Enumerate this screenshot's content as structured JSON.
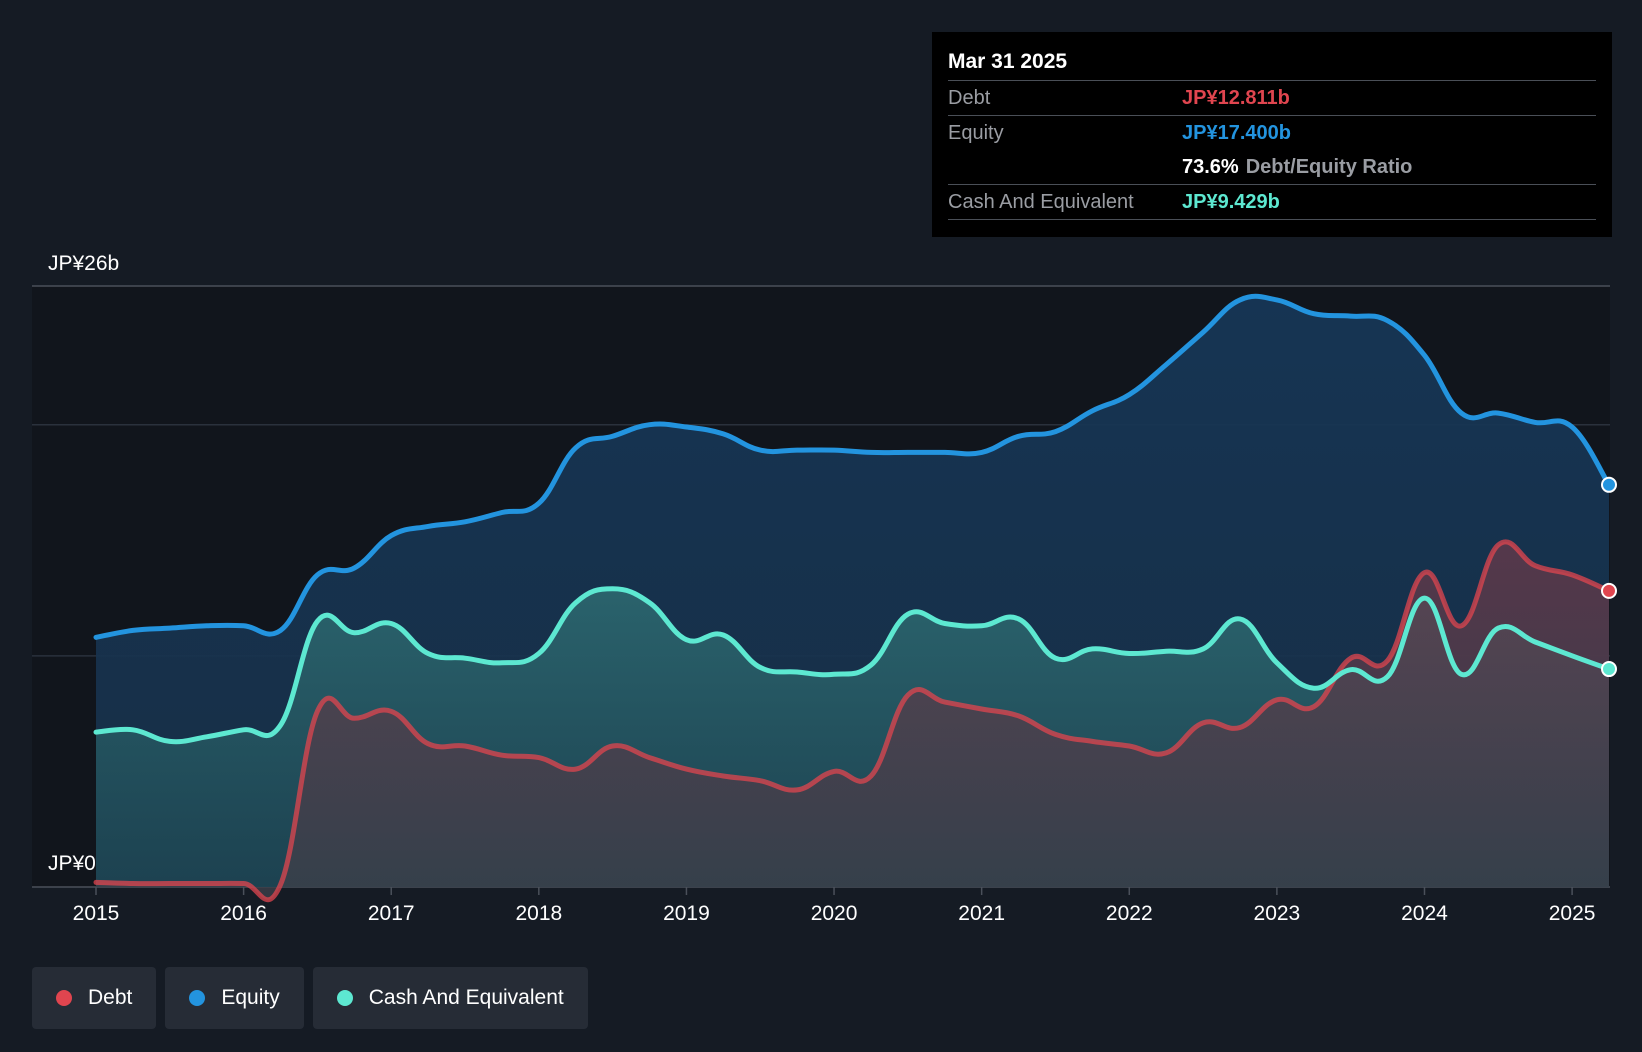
{
  "chart_data": {
    "type": "area",
    "y_axis_top_label": "JP¥26b",
    "y_axis_bottom_label": "JP¥0",
    "ylim": [
      0,
      26
    ],
    "x_ticks": [
      "2015",
      "2016",
      "2017",
      "2018",
      "2019",
      "2020",
      "2021",
      "2022",
      "2023",
      "2024",
      "2025"
    ],
    "xlim": [
      2015.0,
      2025.25
    ],
    "series": [
      {
        "name": "Equity",
        "color": "#2394df",
        "points": [
          [
            2015.0,
            10.8
          ],
          [
            2015.25,
            11.1
          ],
          [
            2015.5,
            11.2
          ],
          [
            2015.75,
            11.3
          ],
          [
            2016.0,
            11.3
          ],
          [
            2016.25,
            11.1
          ],
          [
            2016.5,
            13.5
          ],
          [
            2016.75,
            13.8
          ],
          [
            2017.0,
            15.2
          ],
          [
            2017.25,
            15.6
          ],
          [
            2017.5,
            15.8
          ],
          [
            2017.75,
            16.2
          ],
          [
            2018.0,
            16.6
          ],
          [
            2018.25,
            19.0
          ],
          [
            2018.5,
            19.5
          ],
          [
            2018.75,
            20.0
          ],
          [
            2019.0,
            19.9
          ],
          [
            2019.25,
            19.6
          ],
          [
            2019.5,
            18.9
          ],
          [
            2019.75,
            18.9
          ],
          [
            2020.0,
            18.9
          ],
          [
            2020.25,
            18.8
          ],
          [
            2020.5,
            18.8
          ],
          [
            2020.75,
            18.8
          ],
          [
            2021.0,
            18.8
          ],
          [
            2021.25,
            19.5
          ],
          [
            2021.5,
            19.7
          ],
          [
            2021.75,
            20.6
          ],
          [
            2022.0,
            21.3
          ],
          [
            2022.25,
            22.6
          ],
          [
            2022.5,
            24.0
          ],
          [
            2022.75,
            25.4
          ],
          [
            2023.0,
            25.4
          ],
          [
            2023.25,
            24.8
          ],
          [
            2023.5,
            24.7
          ],
          [
            2023.75,
            24.5
          ],
          [
            2024.0,
            23.0
          ],
          [
            2024.25,
            20.5
          ],
          [
            2024.5,
            20.5
          ],
          [
            2024.75,
            20.1
          ],
          [
            2025.0,
            19.9
          ],
          [
            2025.25,
            17.4
          ]
        ]
      },
      {
        "name": "Cash And Equivalent",
        "color": "#5de8d1",
        "points": [
          [
            2015.0,
            6.7
          ],
          [
            2015.25,
            6.8
          ],
          [
            2015.5,
            6.3
          ],
          [
            2015.75,
            6.5
          ],
          [
            2016.0,
            6.8
          ],
          [
            2016.25,
            7.0
          ],
          [
            2016.5,
            11.5
          ],
          [
            2016.75,
            11.0
          ],
          [
            2017.0,
            11.4
          ],
          [
            2017.25,
            10.1
          ],
          [
            2017.5,
            9.9
          ],
          [
            2017.75,
            9.7
          ],
          [
            2018.0,
            10.1
          ],
          [
            2018.25,
            12.3
          ],
          [
            2018.5,
            12.9
          ],
          [
            2018.75,
            12.3
          ],
          [
            2019.0,
            10.7
          ],
          [
            2019.25,
            10.9
          ],
          [
            2019.5,
            9.5
          ],
          [
            2019.75,
            9.3
          ],
          [
            2020.0,
            9.2
          ],
          [
            2020.25,
            9.6
          ],
          [
            2020.5,
            11.8
          ],
          [
            2020.75,
            11.4
          ],
          [
            2021.0,
            11.3
          ],
          [
            2021.25,
            11.6
          ],
          [
            2021.5,
            9.9
          ],
          [
            2021.75,
            10.3
          ],
          [
            2022.0,
            10.1
          ],
          [
            2022.25,
            10.2
          ],
          [
            2022.5,
            10.3
          ],
          [
            2022.75,
            11.6
          ],
          [
            2023.0,
            9.7
          ],
          [
            2023.25,
            8.6
          ],
          [
            2023.5,
            9.4
          ],
          [
            2023.75,
            9.1
          ],
          [
            2024.0,
            12.5
          ],
          [
            2024.25,
            9.2
          ],
          [
            2024.5,
            11.2
          ],
          [
            2024.75,
            10.6
          ],
          [
            2025.0,
            10.0
          ],
          [
            2025.25,
            9.429
          ]
        ]
      },
      {
        "name": "Debt",
        "color": "#e0454f",
        "points": [
          [
            2015.0,
            0.2
          ],
          [
            2015.25,
            0.15
          ],
          [
            2015.5,
            0.15
          ],
          [
            2015.75,
            0.15
          ],
          [
            2016.0,
            0.15
          ],
          [
            2016.25,
            0.1
          ],
          [
            2016.5,
            7.6
          ],
          [
            2016.75,
            7.3
          ],
          [
            2017.0,
            7.6
          ],
          [
            2017.25,
            6.2
          ],
          [
            2017.5,
            6.1
          ],
          [
            2017.75,
            5.7
          ],
          [
            2018.0,
            5.6
          ],
          [
            2018.25,
            5.1
          ],
          [
            2018.5,
            6.1
          ],
          [
            2018.75,
            5.6
          ],
          [
            2019.0,
            5.1
          ],
          [
            2019.25,
            4.8
          ],
          [
            2019.5,
            4.6
          ],
          [
            2019.75,
            4.2
          ],
          [
            2020.0,
            5.0
          ],
          [
            2020.25,
            4.8
          ],
          [
            2020.5,
            8.3
          ],
          [
            2020.75,
            8.0
          ],
          [
            2021.0,
            7.7
          ],
          [
            2021.25,
            7.4
          ],
          [
            2021.5,
            6.6
          ],
          [
            2021.75,
            6.3
          ],
          [
            2022.0,
            6.1
          ],
          [
            2022.25,
            5.8
          ],
          [
            2022.5,
            7.1
          ],
          [
            2022.75,
            6.9
          ],
          [
            2023.0,
            8.1
          ],
          [
            2023.25,
            7.8
          ],
          [
            2023.5,
            9.9
          ],
          [
            2023.75,
            9.8
          ],
          [
            2024.0,
            13.6
          ],
          [
            2024.25,
            11.3
          ],
          [
            2024.5,
            14.8
          ],
          [
            2024.75,
            13.9
          ],
          [
            2025.0,
            13.5
          ],
          [
            2025.25,
            12.811
          ]
        ]
      }
    ]
  },
  "tooltip": {
    "date": "Mar 31 2025",
    "debt_label": "Debt",
    "debt_value": "JP¥12.811b",
    "equity_label": "Equity",
    "equity_value": "JP¥17.400b",
    "ratio_value": "73.6%",
    "ratio_label": "Debt/Equity Ratio",
    "cash_label": "Cash And Equivalent",
    "cash_value": "JP¥9.429b"
  },
  "legend": {
    "debt": "Debt",
    "equity": "Equity",
    "cash": "Cash And Equivalent"
  },
  "colors": {
    "debt": "#e0454f",
    "equity": "#2394df",
    "cash": "#5de8d1",
    "background": "#151b24",
    "plot_background": "#11151c"
  }
}
